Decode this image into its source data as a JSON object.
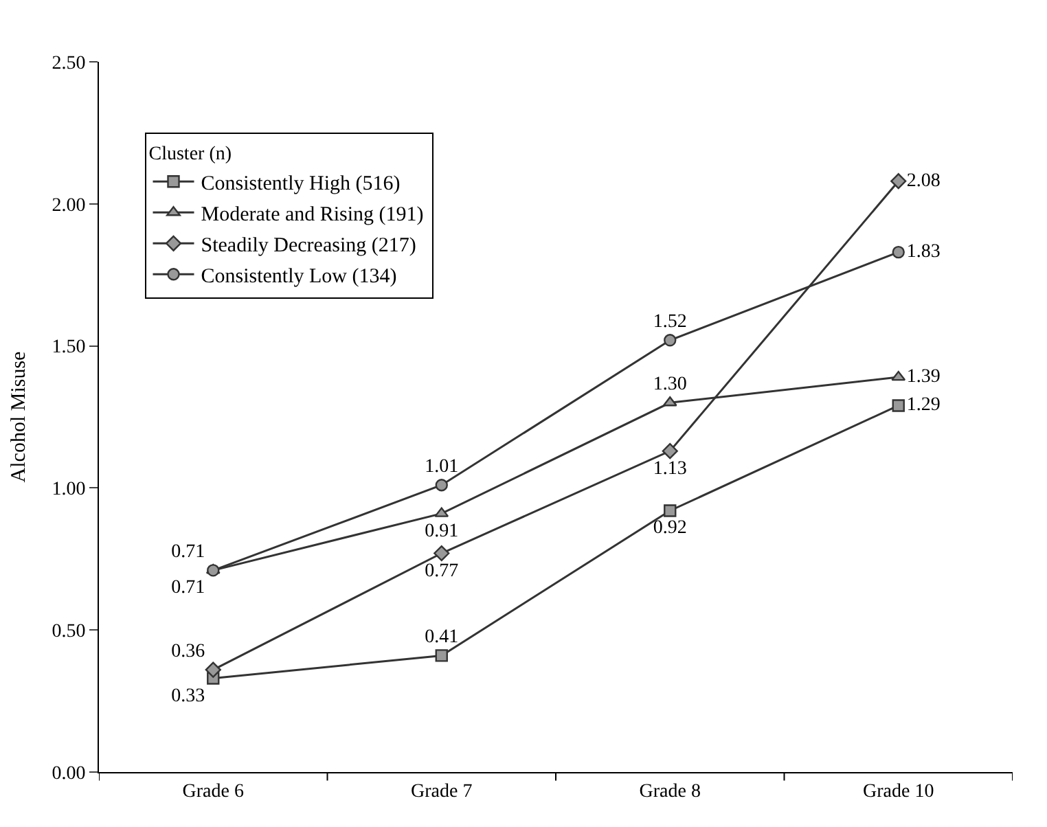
{
  "chart_data": {
    "type": "line",
    "ylabel": "Alcohol Misuse",
    "legend_title": "Cluster (n)",
    "categories": [
      "Grade 6",
      "Grade 7",
      "Grade 8",
      "Grade 10"
    ],
    "series": [
      {
        "name": "Consistently High (516)",
        "color": "#333333",
        "marker": "square",
        "values": [
          0.33,
          0.41,
          0.92,
          1.29
        ],
        "value_labels": [
          "0.33",
          "0.41",
          "0.92",
          "1.29"
        ]
      },
      {
        "name": "Moderate and Rising (191)",
        "color": "#333333",
        "marker": "triangle",
        "values": [
          0.71,
          0.91,
          1.3,
          1.39
        ],
        "value_labels": [
          "0.71",
          "0.91",
          "1.30",
          "1.39"
        ]
      },
      {
        "name": "Steadily Decreasing (217)",
        "color": "#333333",
        "marker": "diamond",
        "values": [
          0.36,
          0.77,
          1.13,
          2.08
        ],
        "value_labels": [
          "0.36",
          "0.77",
          "1.13",
          "2.08"
        ]
      },
      {
        "name": "Consistently Low (134)",
        "color": "#333333",
        "marker": "circle",
        "values": [
          0.71,
          1.01,
          1.52,
          1.83
        ],
        "value_labels": [
          "0.71",
          "1.01",
          "1.52",
          "1.83"
        ]
      }
    ],
    "ylim": [
      0,
      2.5
    ],
    "yticks": [
      {
        "value": 0,
        "label": "0.00"
      },
      {
        "value": 0.5,
        "label": "0.50"
      },
      {
        "value": 1,
        "label": "1.00"
      },
      {
        "value": 1.5,
        "label": "1.50"
      },
      {
        "value": 2,
        "label": "2.00"
      },
      {
        "value": 2.5,
        "label": "2.50"
      }
    ],
    "legend": "top left",
    "line_style": "solid"
  }
}
